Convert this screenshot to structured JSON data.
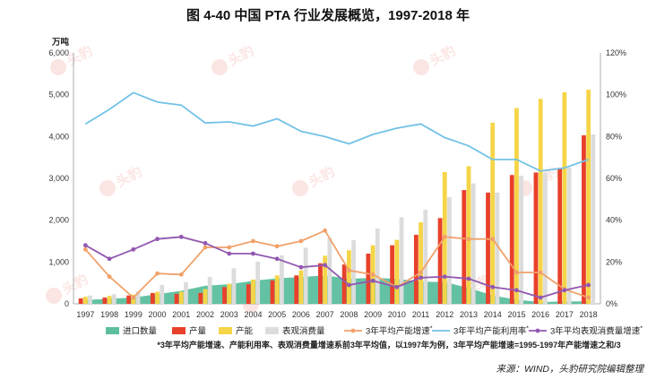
{
  "chart_data": {
    "type": "bar",
    "title": "图 4-40 中国 PTA 行业发展概览，1997-2018 年",
    "y_left_label": "万吨",
    "y_left_ticks": [
      "0",
      "1,000",
      "2,000",
      "3,000",
      "4,000",
      "5,000",
      "6,000"
    ],
    "y_left_range": [
      0,
      6000
    ],
    "y_right_ticks": [
      "0%",
      "20%",
      "40%",
      "60%",
      "80%",
      "100%",
      "120%"
    ],
    "y_right_range": [
      0,
      120
    ],
    "categories": [
      "1997",
      "1998",
      "1999",
      "2000",
      "2001",
      "2002",
      "2003",
      "2004",
      "2005",
      "2006",
      "2007",
      "2008",
      "2009",
      "2010",
      "2011",
      "2012",
      "2013",
      "2014",
      "2015",
      "2016",
      "2017",
      "2018"
    ],
    "area_series": {
      "name": "进口数量",
      "color": "#5bbf9f",
      "values": [
        90,
        120,
        150,
        230,
        310,
        430,
        470,
        550,
        610,
        640,
        680,
        600,
        620,
        600,
        530,
        520,
        380,
        200,
        100,
        40,
        60,
        60
      ]
    },
    "bar_series": [
      {
        "name": "产量",
        "color": "#e8402a",
        "values": [
          130,
          150,
          200,
          260,
          240,
          260,
          400,
          470,
          560,
          680,
          970,
          940,
          1200,
          1400,
          1650,
          2050,
          2720,
          2660,
          3080,
          3140,
          3250,
          4030
        ]
      },
      {
        "name": "产能",
        "color": "#f5d547",
        "values": [
          170,
          190,
          220,
          290,
          290,
          350,
          480,
          580,
          680,
          800,
          1150,
          1280,
          1400,
          1530,
          1950,
          3150,
          3290,
          4330,
          4680,
          4900,
          5060,
          5120
        ]
      },
      {
        "name": "表观消费量",
        "color": "#dcdcdc",
        "values": [
          200,
          230,
          300,
          450,
          520,
          640,
          850,
          1010,
          1160,
          1340,
          1580,
          1520,
          1800,
          2070,
          2250,
          2550,
          2880,
          2660,
          3060,
          3130,
          3260,
          4050
        ]
      }
    ],
    "line_series": [
      {
        "name": "3年平均产能增速",
        "superscript": "*",
        "color": "#f0a169",
        "marker": "circle",
        "values": [
          26,
          13,
          3,
          14.5,
          14,
          27,
          27,
          30,
          27.5,
          30,
          35,
          16,
          14,
          8,
          15,
          32,
          31,
          31,
          15,
          15,
          7,
          3
        ]
      },
      {
        "name": "3年平均产能利用率",
        "superscript": "*",
        "color": "#72c2e6",
        "marker": "none",
        "values": [
          86,
          93,
          101,
          96.5,
          95,
          86.5,
          87,
          85,
          88.5,
          82.5,
          80,
          76.5,
          81,
          84,
          86,
          79.5,
          75.5,
          69,
          69,
          63.5,
          65,
          69
        ]
      },
      {
        "name": "3年平均表观消费量增速",
        "superscript": "*",
        "color": "#9258b0",
        "marker": "circle",
        "values": [
          28,
          21.5,
          26,
          31,
          32,
          29,
          24,
          24,
          21.5,
          17.5,
          18.5,
          9,
          11,
          8,
          12.5,
          13,
          12,
          8,
          6.5,
          3,
          6.5,
          9
        ]
      }
    ],
    "legend_placement": "bottom",
    "grid": false,
    "note": "*3年平均产能增速、产能利用率、表观消费量增速系前3年平均值，以1997年为例，3年平均产能增速=1995-1997年产能增速之和/3",
    "source": "来源：WIND，头豹研究院编辑整理",
    "watermark": "头豹"
  }
}
